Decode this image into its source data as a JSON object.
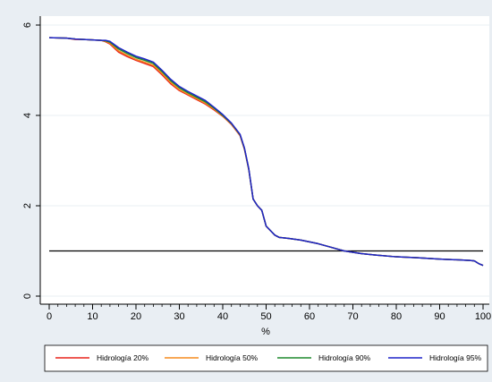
{
  "chart_data": {
    "type": "line",
    "xlabel": "%",
    "ylabel": "",
    "xlim": [
      0,
      100
    ],
    "ylim": [
      0,
      6
    ],
    "xticks": [
      "0",
      "10",
      "20",
      "30",
      "40",
      "50",
      "60",
      "70",
      "80",
      "90",
      "100"
    ],
    "yticks": [
      "0",
      "2",
      "4",
      "6"
    ],
    "grid": "horizontal",
    "legend": "bottom",
    "reference_line": {
      "y": 1.0,
      "color": "#000000"
    },
    "series": [
      {
        "name": "Hidrología 20%",
        "color": "#e8231c",
        "x": [
          0,
          4,
          6,
          8,
          10,
          12,
          13,
          14,
          16,
          18,
          20,
          22,
          24,
          26,
          28,
          30,
          32,
          34,
          36,
          38,
          40,
          42,
          44,
          45,
          46,
          47,
          48,
          49,
          50,
          51,
          52,
          53,
          55,
          58,
          60,
          62,
          65,
          68,
          70,
          72,
          75,
          80,
          85,
          90,
          95,
          97,
          98,
          99,
          100
        ],
        "y": [
          5.72,
          5.71,
          5.68,
          5.68,
          5.67,
          5.66,
          5.63,
          5.58,
          5.4,
          5.3,
          5.22,
          5.15,
          5.08,
          4.9,
          4.7,
          4.55,
          4.45,
          4.35,
          4.25,
          4.12,
          3.98,
          3.8,
          3.55,
          3.25,
          2.8,
          2.15,
          2.0,
          1.9,
          1.55,
          1.45,
          1.35,
          1.3,
          1.28,
          1.24,
          1.2,
          1.16,
          1.08,
          1.0,
          0.97,
          0.94,
          0.91,
          0.87,
          0.85,
          0.82,
          0.8,
          0.79,
          0.78,
          0.72,
          0.68
        ]
      },
      {
        "name": "Hidrología 50%",
        "color": "#f58b1f",
        "x": [
          0,
          4,
          6,
          8,
          10,
          12,
          13,
          14,
          16,
          18,
          20,
          22,
          24,
          26,
          28,
          30,
          32,
          34,
          36,
          38,
          40,
          42,
          44,
          45,
          46,
          47,
          48,
          49,
          50,
          51,
          52,
          53,
          55,
          58,
          60,
          62,
          65,
          68,
          70,
          72,
          75,
          80,
          85,
          90,
          95,
          97,
          98,
          99,
          100
        ],
        "y": [
          5.72,
          5.71,
          5.69,
          5.68,
          5.67,
          5.66,
          5.64,
          5.6,
          5.43,
          5.33,
          5.24,
          5.18,
          5.11,
          4.93,
          4.73,
          4.57,
          4.47,
          4.37,
          4.27,
          4.14,
          3.99,
          3.81,
          3.56,
          3.26,
          2.81,
          2.15,
          2.0,
          1.9,
          1.55,
          1.45,
          1.35,
          1.3,
          1.28,
          1.24,
          1.2,
          1.16,
          1.08,
          1.0,
          0.97,
          0.94,
          0.91,
          0.87,
          0.85,
          0.82,
          0.8,
          0.79,
          0.78,
          0.72,
          0.68
        ]
      },
      {
        "name": "Hidrología 90%",
        "color": "#1e8a2d",
        "x": [
          0,
          4,
          6,
          8,
          10,
          12,
          13,
          14,
          16,
          18,
          20,
          22,
          24,
          26,
          28,
          30,
          32,
          34,
          36,
          38,
          40,
          42,
          44,
          45,
          46,
          47,
          48,
          49,
          50,
          51,
          52,
          53,
          55,
          58,
          60,
          62,
          65,
          68,
          70,
          72,
          75,
          80,
          85,
          90,
          95,
          97,
          98,
          99,
          100
        ],
        "y": [
          5.72,
          5.71,
          5.69,
          5.68,
          5.67,
          5.66,
          5.65,
          5.62,
          5.47,
          5.37,
          5.28,
          5.22,
          5.15,
          4.97,
          4.77,
          4.61,
          4.5,
          4.4,
          4.3,
          4.16,
          4.0,
          3.82,
          3.57,
          3.27,
          2.81,
          2.15,
          2.0,
          1.9,
          1.55,
          1.45,
          1.35,
          1.3,
          1.28,
          1.24,
          1.2,
          1.16,
          1.08,
          1.0,
          0.97,
          0.94,
          0.91,
          0.87,
          0.85,
          0.82,
          0.8,
          0.79,
          0.78,
          0.72,
          0.68
        ]
      },
      {
        "name": "Hidrología 95%",
        "color": "#1f23c8",
        "x": [
          0,
          4,
          6,
          8,
          10,
          12,
          13,
          14,
          16,
          18,
          20,
          22,
          24,
          26,
          28,
          30,
          32,
          34,
          36,
          38,
          40,
          42,
          44,
          45,
          46,
          47,
          48,
          49,
          50,
          51,
          52,
          53,
          55,
          58,
          60,
          62,
          65,
          68,
          70,
          72,
          75,
          80,
          85,
          90,
          95,
          97,
          98,
          99,
          100
        ],
        "y": [
          5.72,
          5.71,
          5.69,
          5.68,
          5.67,
          5.66,
          5.66,
          5.64,
          5.5,
          5.4,
          5.31,
          5.25,
          5.18,
          5.0,
          4.8,
          4.64,
          4.53,
          4.43,
          4.33,
          4.18,
          4.02,
          3.83,
          3.58,
          3.28,
          2.82,
          2.15,
          2.0,
          1.9,
          1.55,
          1.45,
          1.35,
          1.3,
          1.28,
          1.24,
          1.2,
          1.16,
          1.08,
          1.0,
          0.97,
          0.94,
          0.91,
          0.87,
          0.85,
          0.82,
          0.8,
          0.79,
          0.78,
          0.72,
          0.68
        ]
      }
    ]
  }
}
